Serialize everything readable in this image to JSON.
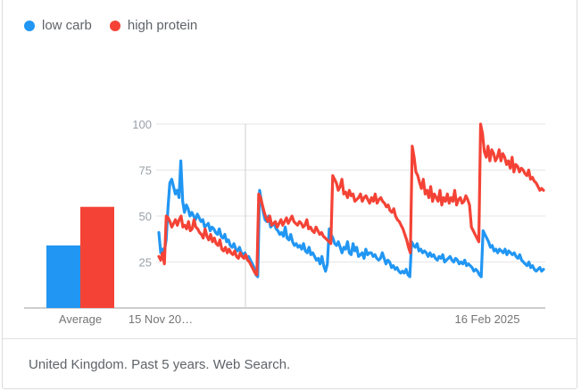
{
  "legend": [
    {
      "label": "low carb",
      "color": "#2196f3"
    },
    {
      "label": "high protein",
      "color": "#f44336"
    }
  ],
  "footer": "United Kingdom. Past 5 years. Web Search.",
  "chart_data": {
    "type": "line",
    "ylim": [
      0,
      100
    ],
    "yticks": [
      "25",
      "50",
      "75",
      "100"
    ],
    "xtick_labels": [
      "15 Nov 20…",
      "16 Feb 2025"
    ],
    "grid": true,
    "legend_position": "top-left",
    "average_label": "Average",
    "averages": [
      {
        "name": "low carb",
        "value": 34
      },
      {
        "name": "high protein",
        "value": 55
      }
    ],
    "series": [
      {
        "name": "low carb",
        "color": "#2196f3",
        "values": [
          41,
          30,
          32,
          31,
          37,
          55,
          68,
          70,
          66,
          62,
          64,
          60,
          80,
          58,
          52,
          56,
          54,
          50,
          52,
          50,
          48,
          51,
          49,
          47,
          48,
          44,
          45,
          46,
          42,
          44,
          43,
          41,
          40,
          43,
          39,
          38,
          40,
          36,
          37,
          34,
          33,
          35,
          32,
          31,
          33,
          30,
          29,
          30,
          27,
          28,
          26,
          24,
          22,
          18,
          17,
          64,
          58,
          52,
          48,
          47,
          50,
          44,
          45,
          46,
          43,
          42,
          40,
          41,
          39,
          44,
          38,
          37,
          40,
          36,
          34,
          35,
          33,
          34,
          32,
          35,
          31,
          30,
          33,
          29,
          30,
          28,
          26,
          27,
          24,
          28,
          23,
          20,
          24,
          43,
          40,
          38,
          35,
          34,
          36,
          33,
          30,
          33,
          32,
          36,
          30,
          29,
          35,
          31,
          33,
          28,
          29,
          30,
          27,
          32,
          29,
          30,
          30,
          28,
          29,
          27,
          26,
          27,
          30,
          27,
          24,
          26,
          25,
          22,
          23,
          21,
          22,
          20,
          19,
          20,
          19,
          21,
          18,
          17,
          36,
          34,
          33,
          35,
          31,
          32,
          30,
          31,
          30,
          28,
          30,
          28,
          29,
          27,
          26,
          28,
          27,
          29,
          25,
          26,
          27,
          28,
          26,
          25,
          27,
          26,
          24,
          25,
          24,
          26,
          23,
          24,
          23,
          22,
          20,
          21,
          20,
          18,
          17,
          42,
          40,
          38,
          36,
          33,
          34,
          31,
          32,
          30,
          32,
          31,
          30,
          32,
          29,
          31,
          30,
          29,
          30,
          28,
          27,
          29,
          26,
          25,
          24,
          23,
          25,
          22,
          23,
          21,
          20,
          21,
          22,
          20,
          21
        ]
      },
      {
        "name": "high protein",
        "color": "#f44336",
        "values": [
          28,
          26,
          30,
          24,
          50,
          49,
          47,
          44,
          46,
          48,
          45,
          48,
          50,
          44,
          45,
          43,
          47,
          42,
          43,
          48,
          44,
          43,
          41,
          40,
          38,
          43,
          39,
          37,
          40,
          36,
          38,
          35,
          34,
          37,
          32,
          31,
          33,
          30,
          32,
          30,
          29,
          31,
          28,
          27,
          30,
          28,
          27,
          29,
          26,
          25,
          23,
          21,
          19,
          18,
          62,
          60,
          56,
          52,
          49,
          47,
          50,
          45,
          46,
          47,
          44,
          46,
          48,
          45,
          47,
          49,
          46,
          48,
          50,
          47,
          46,
          45,
          47,
          46,
          44,
          45,
          48,
          43,
          44,
          42,
          41,
          44,
          42,
          40,
          41,
          39,
          38,
          37,
          36,
          35,
          72,
          70,
          68,
          64,
          66,
          70,
          62,
          63,
          60,
          64,
          61,
          62,
          58,
          59,
          60,
          62,
          58,
          60,
          61,
          59,
          57,
          60,
          58,
          62,
          57,
          59,
          60,
          58,
          57,
          55,
          56,
          53,
          52,
          54,
          50,
          48,
          47,
          45,
          43,
          40,
          37,
          33,
          30,
          88,
          82,
          74,
          72,
          68,
          65,
          70,
          62,
          64,
          60,
          66,
          58,
          62,
          60,
          58,
          64,
          56,
          60,
          58,
          62,
          57,
          60,
          58,
          64,
          56,
          59,
          60,
          57,
          58,
          61,
          59,
          56,
          44,
          42,
          40,
          38,
          36,
          100,
          95,
          85,
          82,
          88,
          80,
          86,
          84,
          80,
          82,
          86,
          80,
          84,
          82,
          78,
          80,
          76,
          82,
          74,
          78,
          77,
          74,
          76,
          75,
          73,
          72,
          75,
          70,
          71,
          69,
          68,
          66,
          64,
          65,
          64
        ]
      }
    ]
  }
}
